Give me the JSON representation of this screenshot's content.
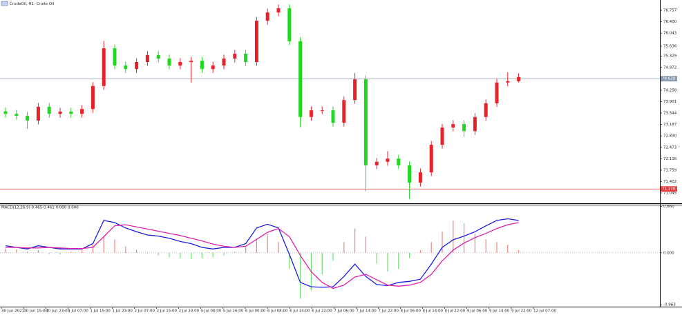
{
  "chart_data": [
    {
      "type": "candlestick",
      "title": "CrudeOil, H1: Crude Oil",
      "up_color": "#e8222a",
      "down_color": "#20d820",
      "open": [
        73.6,
        73.52,
        73.46,
        73.31,
        73.74,
        73.52,
        73.59,
        73.52,
        73.67,
        74.39,
        75.57,
        75.03,
        74.92,
        75.14,
        75.36,
        75.25,
        75.03,
        75.14,
        75.18,
        74.92,
        75.03,
        75.25,
        75.4,
        75.14,
        76.43,
        76.69,
        76.82,
        75.79,
        73.42,
        73.63,
        73.63,
        73.24,
        73.95,
        74.6,
        71.91,
        72.02,
        72.12,
        71.91,
        71.37,
        71.69,
        72.55,
        73.09,
        73.2,
        72.98,
        73.42,
        73.85,
        74.5,
        74.54
      ],
      "high": [
        73.72,
        73.64,
        73.58,
        73.86,
        73.86,
        73.71,
        73.71,
        73.79,
        74.51,
        75.8,
        75.69,
        75.15,
        75.26,
        75.48,
        75.48,
        75.37,
        75.26,
        75.3,
        75.3,
        75.15,
        75.37,
        75.52,
        75.52,
        76.55,
        76.81,
        76.94,
        76.94,
        75.91,
        73.75,
        73.75,
        73.75,
        74.07,
        74.8,
        74.72,
        72.14,
        72.35,
        72.24,
        72.03,
        71.81,
        72.67,
        73.21,
        73.32,
        73.32,
        73.54,
        73.97,
        74.62,
        74.82,
        74.79
      ],
      "low": [
        73.4,
        73.34,
        73.05,
        73.19,
        73.4,
        73.4,
        73.4,
        73.4,
        73.55,
        74.27,
        74.91,
        74.8,
        74.8,
        75.02,
        75.13,
        74.91,
        74.91,
        74.5,
        74.8,
        74.8,
        74.91,
        75.13,
        75.02,
        75.02,
        76.31,
        76.57,
        75.67,
        73.1,
        73.3,
        73.51,
        73.12,
        73.12,
        73.83,
        71.1,
        71.79,
        71.9,
        71.79,
        70.85,
        71.25,
        71.57,
        72.43,
        72.97,
        72.8,
        72.86,
        73.3,
        73.73,
        74.38,
        74.5
      ],
      "close": [
        73.52,
        73.46,
        73.31,
        73.74,
        73.52,
        73.59,
        73.52,
        73.67,
        74.39,
        75.57,
        75.03,
        74.92,
        75.14,
        75.36,
        75.25,
        75.03,
        75.14,
        75.18,
        74.92,
        75.03,
        75.25,
        75.4,
        75.14,
        76.43,
        76.69,
        76.82,
        75.79,
        73.42,
        73.63,
        73.63,
        73.24,
        73.95,
        74.6,
        71.91,
        72.02,
        72.12,
        71.91,
        71.37,
        71.69,
        72.55,
        73.09,
        73.2,
        72.98,
        73.42,
        73.85,
        74.5,
        74.54,
        74.67
      ],
      "ylim": [
        70.722,
        77.037
      ],
      "yticks": [
        76.757,
        {
          "value": 76.4,
          "label": "76.400"
        },
        76.043,
        75.636,
        75.329,
        74.972,
        74.258,
        73.901,
        73.544,
        73.187,
        {
          "value": 72.83,
          "label": "72.830"
        },
        72.473,
        72.116,
        71.759,
        71.402,
        71.045
      ],
      "hlines": [
        {
          "value": 74.62,
          "label": "74.620",
          "color": "#8c9bb0"
        },
        {
          "value": 71.17,
          "label": "71.170",
          "color": "#e84040"
        }
      ],
      "time_labels": [
        "30 Jun 2021",
        "30 Jun 15:00",
        "30 Jun 23:00",
        "1 Jul 07:00",
        "1 Jul 15:00",
        "1 Jul 23:00",
        "2 Jul 07:00",
        "2 Jul 15:00",
        "2 Jul 23:00",
        "5 Jul 08:00",
        "5 Jul 16:00",
        "6 Jul 00:00",
        "6 Jul 08:00",
        "6 Jul 14:00",
        "6 Jul 22:00",
        "7 Jul 06:00",
        "7 Jul 14:00",
        "7 Jul 22:00",
        "8 Jul 06:00",
        "8 Jul 14:00",
        "8 Jul 22:00",
        "9 Jul 06:00",
        "9 Jul 14:00",
        "9 Jul 22:00",
        "12 Jul 07:00"
      ]
    },
    {
      "type": "macd",
      "title": "MACD(12,26,9) 0.465 0.461 0.000 0.000",
      "ylim": [
        -1.0,
        0.88
      ],
      "yticks": [
        {
          "value": 0.86,
          "label": "0.860"
        },
        {
          "value": 0,
          "label": "0.000"
        },
        {
          "value": -0.963,
          "label": "-0.963"
        }
      ],
      "histogram": {
        "up_color": "#f08080",
        "down_color": "#70e070",
        "values": [
          0.08,
          0.06,
          0.02,
          0.05,
          -0.02,
          -0.03,
          0.02,
          0.04,
          0.15,
          0.3,
          0.25,
          0.12,
          0.05,
          -0.02,
          -0.05,
          -0.08,
          -0.1,
          -0.12,
          -0.1,
          -0.08,
          -0.05,
          0.02,
          0.1,
          0.25,
          0.35,
          0.2,
          -0.3,
          -0.85,
          -0.7,
          -0.4,
          -0.15,
          0.2,
          0.45,
          0.3,
          -0.2,
          -0.35,
          -0.3,
          -0.1,
          0.05,
          0.2,
          0.4,
          0.6,
          0.55,
          0.35,
          0.25,
          0.2,
          0.15,
          0.05
        ]
      },
      "series": [
        {
          "color": "#1a1ae0",
          "values": [
            0.13,
            0.1,
            0.07,
            0.13,
            0.1,
            0.07,
            0.07,
            0.07,
            0.17,
            0.6,
            0.56,
            0.46,
            0.39,
            0.33,
            0.31,
            0.27,
            0.21,
            0.17,
            0.1,
            0.07,
            0.1,
            0.1,
            0.17,
            0.46,
            0.53,
            0.46,
            -0.03,
            -0.55,
            -0.63,
            -0.64,
            -0.63,
            -0.44,
            -0.21,
            -0.44,
            -0.59,
            -0.61,
            -0.55,
            -0.53,
            -0.49,
            -0.21,
            0.1,
            0.24,
            0.31,
            0.39,
            0.5,
            0.6,
            0.63,
            0.6
          ]
        },
        {
          "color": "#e020a8",
          "values": [
            0.1,
            0.1,
            0.09,
            0.09,
            0.1,
            0.09,
            0.08,
            0.08,
            0.1,
            0.3,
            0.5,
            0.52,
            0.48,
            0.44,
            0.4,
            0.36,
            0.32,
            0.27,
            0.22,
            0.16,
            0.12,
            0.1,
            0.12,
            0.25,
            0.38,
            0.45,
            0.3,
            -0.05,
            -0.35,
            -0.55,
            -0.66,
            -0.6,
            -0.45,
            -0.4,
            -0.5,
            -0.6,
            -0.62,
            -0.6,
            -0.55,
            -0.4,
            -0.15,
            0.05,
            0.18,
            0.28,
            0.36,
            0.45,
            0.52,
            0.56
          ]
        }
      ]
    }
  ]
}
